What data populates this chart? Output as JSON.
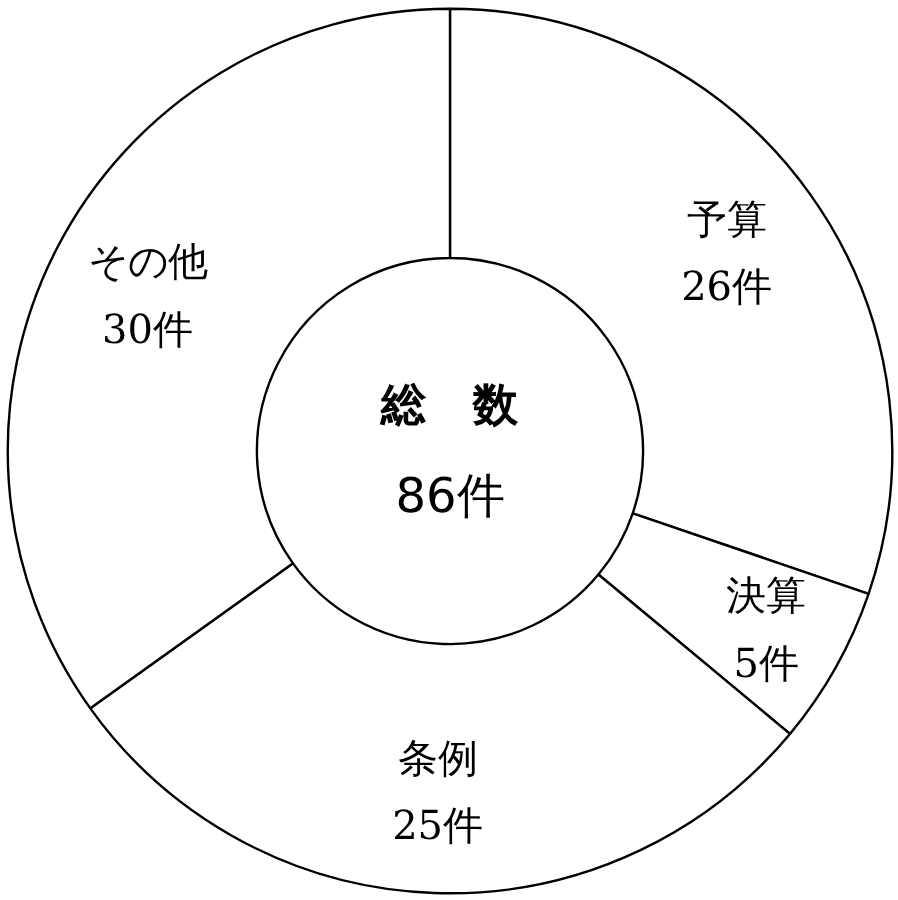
{
  "chart_data": {
    "type": "donut",
    "title": "総　数",
    "subtitle": "86件",
    "categories": [
      "予算",
      "決算",
      "条例",
      "その他"
    ],
    "values": [
      26,
      5,
      25,
      30
    ],
    "value_labels": [
      "26件",
      "5件",
      "25件",
      "30件"
    ],
    "colors": [
      "#ffffff",
      "#ffffff",
      "#ffffff",
      "#ffffff"
    ]
  }
}
